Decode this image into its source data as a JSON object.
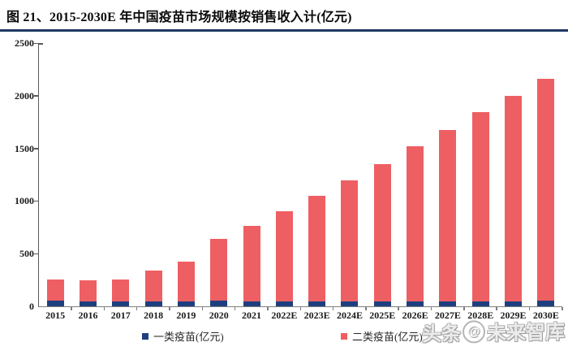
{
  "page": {
    "title": "图 21、2015-2030E 年中国疫苗市场规模按销售收入计(亿元)",
    "accent_color": "#1F3864",
    "watermark": {
      "prefix": "头条",
      "at": "@",
      "suffix": "未来智库"
    }
  },
  "chart_data": {
    "type": "bar",
    "stacked": true,
    "title": "图 21、2015-2030E 年中国疫苗市场规模按销售收入计(亿元)",
    "unit": "亿元",
    "categories": [
      "2015",
      "2016",
      "2017",
      "2018",
      "2019",
      "2020",
      "2021",
      "2022E",
      "2023E",
      "2024E",
      "2025E",
      "2026E",
      "2027E",
      "2028E",
      "2029E",
      "2030E"
    ],
    "series": [
      {
        "name": "一类疫苗(亿元)",
        "color": "#1E3F7F",
        "values": [
          52,
          44,
          46,
          47,
          44,
          54,
          45,
          46,
          46,
          47,
          47,
          48,
          48,
          49,
          50,
          51
        ]
      },
      {
        "name": "二类疫苗(亿元)",
        "color": "#EE5F63",
        "values": [
          199,
          201,
          207,
          289,
          381,
          586,
          716,
          859,
          1000,
          1147,
          1305,
          1470,
          1629,
          1792,
          1951,
          2106
        ]
      }
    ],
    "totals": [
      251,
      245,
      253,
      336,
      425,
      640,
      761,
      905,
      1046,
      1194,
      1352,
      1518,
      1677,
      1841,
      2001,
      2157
    ],
    "xlabel": "",
    "ylabel": "",
    "ylim": [
      0,
      2500
    ],
    "yticks": [
      0,
      500,
      1000,
      1500,
      2000,
      2500
    ],
    "grid": false,
    "legend_position": "bottom"
  }
}
